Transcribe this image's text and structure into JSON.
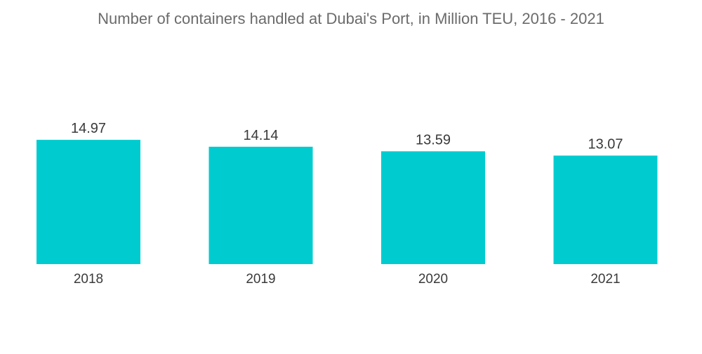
{
  "chart_data": {
    "type": "bar",
    "title": "Number of containers handled at Dubai's Port, in Million TEU, 2016 - 2021",
    "categories": [
      "2018",
      "2019",
      "2020",
      "2021"
    ],
    "values": [
      14.97,
      14.14,
      13.59,
      13.07
    ],
    "data_labels": [
      "14.97",
      "14.14",
      "13.59",
      "13.07"
    ],
    "xlabel": "",
    "ylabel": "",
    "grid": false,
    "legend": "none",
    "colors": {
      "bar": "#00cccf",
      "title": "#6b6b6b",
      "text": "#3a3a3a"
    }
  }
}
